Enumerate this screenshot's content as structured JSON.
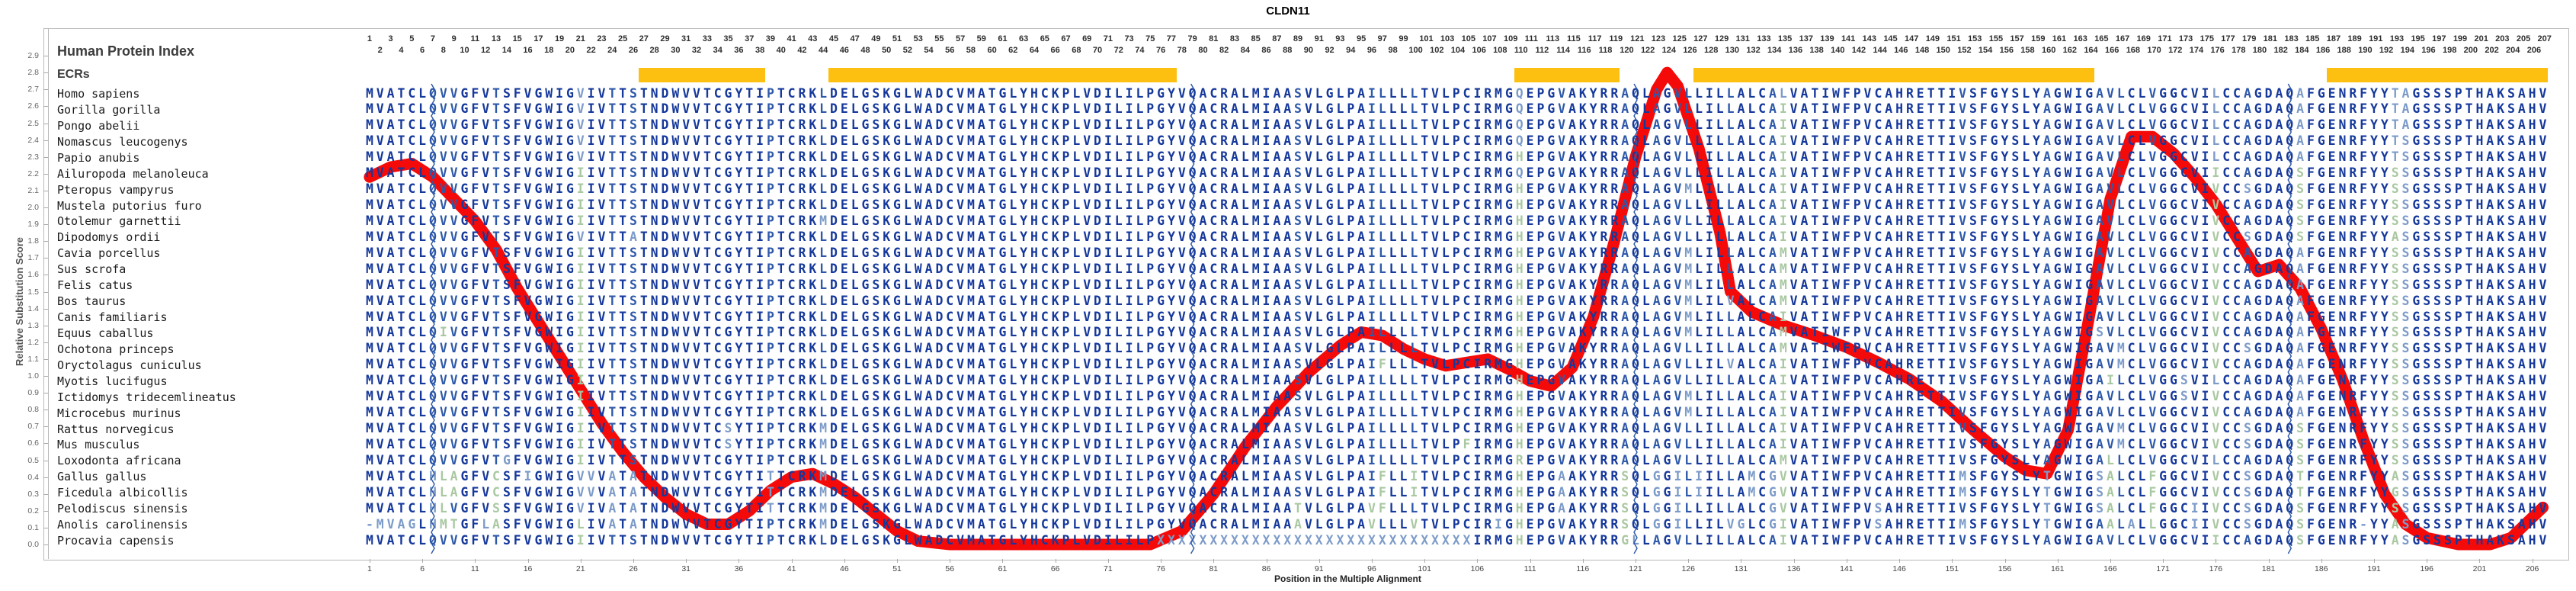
{
  "title": "CLDN11",
  "header": {
    "protein_index_label": "Human Protein Index",
    "ecrs_label": "ECRs"
  },
  "y_axis": {
    "label": "Relative Substitution Score",
    "min": 0.0,
    "max": 2.9,
    "step": 0.1
  },
  "x_axis": {
    "label": "Position in the Multiple Alignment",
    "tick_start": 1,
    "tick_step": 5,
    "tick_end": 206
  },
  "position_numbers": {
    "min": 1,
    "max": 207
  },
  "colors": {
    "ecr_band": "#FDC010",
    "curve": "#F50A0A",
    "seq_dark": "#15389B",
    "seq_mid": "#2E59AA",
    "seq_steel": "#7C9BC9",
    "seq_green": "#A9C8A2",
    "exon_line": "#2B57A7"
  },
  "ecr_regions": [
    {
      "start": 27,
      "end": 38
    },
    {
      "start": 45,
      "end": 77
    },
    {
      "start": 110,
      "end": 119
    },
    {
      "start": 127,
      "end": 164
    },
    {
      "start": 187,
      "end": 207
    }
  ],
  "exon_boundaries": [
    7,
    79,
    121,
    183
  ],
  "alignment": {
    "columns": 207,
    "species": [
      {
        "name": "Homo sapiens",
        "seq": "MVATCLQVVGFVTSFVGWIGVIVTTSTNDWVVTCGYTIPTCRKLDELGSKGLWADCVMATGLYHCKPLVDILILPGYVQACRALMIAASVLGLPAILLLLTVLPCIRMGQEPGVAKYRRAQLAGVLLILLALCALVATIWFPVCAHRETTIVSFGYSLYAGWIGAVLCLVGGCVILCCAGDAQAFGENRFYYTAGSSSPTHAKSAHV"
      },
      {
        "name": "Gorilla gorilla",
        "seq": "MVATCLQVVGFVTSFVGWIGVIVTTSTNDWVVTCGYTIPTCRKLDELGSKGLWADCVMATGLYHCKPLVDILILPGYVQACRALMIAASVLGLPAILLLLTVLPCIRMGQEPGVAKYRRAQLAGVLLILLALCAIVATIWFPVCAHRETTIVSFGYSLYAGWIGAVLCLVGGCVILCCAGDAQAFGENRFYYTAGSSSPTHAKSAHV"
      },
      {
        "name": "Pongo abelii",
        "seq": "MVATCLQVVGFVTSFVGWIGVIVTTSTNDWVVTCGYTIPTCRKLDELGSKGLWADCVMATGLYHCKPLVDILILPGYVQACRALMIAASVLGLPAILLLLTVLPCIRMGQEPGVAKYRRAQLAGVLLILLALCAIVATIWFPVCAHRETTIVSFGYSLYAGWIGAVLCLVGGCVILCCAGDAQAFGENRFYYTAGSSSPTHAKSAHV"
      },
      {
        "name": "Nomascus leucogenys",
        "seq": "MVATCLQVVGFVTSFVGWIGVIVTTSTNDWVVTCGYTIPTCRKLDELGSKGLWADCVMATGLYHCKPLVDILILPGYVQACRALMIAASVLGLPAILLLLTVLPCIRMGQEPGVAKYRRAQLAGVLLILLALCAIVATIWFPVCAHRETTIVSFGYSLYAGWIGAVLCLVGGCVILCCAGDAQAFGENRFYYTSGSSSPTHAKSAHV"
      },
      {
        "name": "Papio anubis",
        "seq": "MVATCLQVVGFVTSFVGWIGVIVTTSTNDWVVTCGYTIPTCRKLDELGSKGLWADCVMATGLYHCKPLVDILILPGYVQACRALMIAASVLGLPAILLLLTVLPCIRMGHEPGVAKYRRAQLAGVLLILLALCAIVATIWFPVCAHRETTIVSFGYSLYAGWIGAVLCLVGGCVILCCAGDAQAFGENRFYYTSGSSSPTHAKSAHV"
      },
      {
        "name": "Ailuropoda melanoleuca",
        "seq": "MVATCLQVVGFVTSFVGWIGIIVTTSTNDWVVTCGYTIPTCRKLDELGSKGLWADCVMATGLYHCKPLVDILILPGYVQACRALMIAASVLGLPAILLLLTVLPCIRMGQEPGVAKYRRAQLAGVLLILLALCAIVATIWFPVCAHRETTIVSFGYSLYAGWIGAVLCLVGGCVIICCAGDAQSFGENRFYYSSGSSSPTHAKSAHV"
      },
      {
        "name": "Pteropus vampyrus",
        "seq": "MVATCLQVVGFVTSFVGWIGIIVTTSTNDWVVTCGYTIPTCRKLDELGSKGLWADCVMATGLYHCKPLVDILILPGYVQACRALMIAASVLGLPAILLLLTVLPCIRMGHEPGVAKYRRAQLAGVMLILLALCAIVATIWFPVCAHRETTIVSFGYSLYAGWIGAVLCLVGGCVIVCCSGDAQSFGENRFYYSSGSSSPTHAKSAHV"
      },
      {
        "name": "Mustela putorius furo",
        "seq": "MVATCLQVVGFVTSFVGWIGIIVTTSTNDWVVTCGYTIPTCRKLDELGSKGLWADCVMATGLYHCKPLVDILILPGYVQACRALMIAASVLGLPAILLLLTVLPCIRMGHEPGVAKYRRAQLAGVLLILLALCAIVATIWFPVCAHRETTIVSFGYSLYAGWIGAVLCLVGGCVIVCCAGDAQSFGENRFYYSSGSSSPTHAKSAHV"
      },
      {
        "name": "Otolemur garnettii",
        "seq": "MVATCLQVVGFVTSFVGWIGIIVTTSTNDWVVTCGYTIPTCRKMDELGSKGLWADCVMATGLYHCKPLVDILILPGYVQACRALMIAASVLGLPAILLLLTVLPCIRMGHEPGVAKYRRAQLAGVLLILLALCAIVATIWFPVCAHRETTIVSFGYSLYAGWIGAVLCLVGGCVIVCCAGDAQSFGENRFYYSSGSSSPTHAKSAHV"
      },
      {
        "name": "Dipodomys ordii",
        "seq": "MVATCLQVVGFVTSFVGWIGVIVTTATNDWVVTCGYTIPTCRKLDELGSKGLWADCVMATGLYHCKPLVDILILPGYVQACRALMIAASVLGLPAILLLLTVLPCIRMGHEPGVAKYRRAQLAGVLLILLALCAIVATIWFPVCAHRETTIVSFGYSLYAGWIGAVLCLVGGCVIVCCSGDAQSFGENRFYYASGSSSPTHAKSAHV"
      },
      {
        "name": "Cavia porcellus",
        "seq": "MVATCLQVVGFVTSFVGWIGIIVTTSTNDWVVTCGYTIPTCRKLDELGSKGLWADCVMATGLYHCKPLVDILILPGYVQACRALMIAASVLGLPAILLLLTVLPCIRMGHEPGVAKYRRAQLAGVMLILLALCAMVATIWFPVCAHRETTIVSFGYSLYAGWIGAVLCLVGGCVIVCCAGDAQAFGENRFYYSSGSSSPTHAKSAHV"
      },
      {
        "name": "Sus scrofa",
        "seq": "MVATCLQVVGFVTSFVGWIGIIVTTSTNDWVVTCGYTIPTCRKLDELGSKGLWADCVMATGLYHCKPLVDILILPGYVQACRALMIAASVLGLPAILLLLTVLPCIRMGHEPGVAKYRRAQLAGVMLILLALCAMVATIWFPVCAHRETTIVSFGYSLYAGWIGAVLCLVGGCVIVCCAGDAQAFGENRFYYSSGSSSPTHAKSAHV"
      },
      {
        "name": "Felis catus",
        "seq": "MVATCLQVVGFVTSFVGWIGIIVTTSTNDWVVTCGYTIPTCRKLDELGSKGLWADCVMATGLYHCKPLVDILILPGYVQACRALMIAASVLGLPAILLLLTVLPCIRMGHEPGVAKYRRAQLAGVMLILLALCAMVATIWFPVCAHRETTIVSFGYSLYAGWIGAVLCLVGGCVIVCCAGDAQAFGENRFYYSSGSSSPTHAKSAHV"
      },
      {
        "name": "Bos taurus",
        "seq": "MVATCLQVVGFVTSFVGWIGIIVTTSTNDWVVTCGYTIPTCRKLDELGSKGLWADCVMATGLYHCKPLVDILILPGYVQACRALMIAASVLGLPAILLLLTVLPCIRMGHEPGVAKYRRAQLAGVMLILVALCAMVATIWFPVCAHRETTIVSFGYSLYAGWIGAVLCLVGGCVIVCCAGDAQAFGENRFYYSSGSSSPTHAKSAHV"
      },
      {
        "name": "Canis familiaris",
        "seq": "MVATCLQVVGFVTSFVGWIGIIVTTSTNDWVVTCGYTIPTCRKLDELGSKGLWADCVMATGLYHCKPLVDILILPGYVQACRALMIAASVLGLPAILLLLTVLPCIRMGHEPGVAKYRRAQLAGVMLILLALCAIVATIWFPVCAHRETTIVSFGYSLYAGWIGAVLCLVGGCVIVCCAGDAQAFGENRFYYSSGSSSPTHAKSAHV"
      },
      {
        "name": "Equus caballus",
        "seq": "MVATCLQIVGFVTSFVGWIGIIVTTSTNDWVVTCGYTIPTCRKLDELGSKGLWADCVMATGLYHCKPLVDILILPGYVQACRALMIAASVLGLPAILLLLTVLPCIRMGHEPGVAKYRRAQLAGVMLILLALCAMVATIWFPVCAHRETTIVSFGYSLYAGWIGSVLCLVGGCVIVCCAGDAQAFGENRFYYSSGSSSPTHAKSAHV"
      },
      {
        "name": "Ochotona princeps",
        "seq": "MVATCLQVVGFVTSFVGWIGIIVTTSTNDWVVTCGYTIPTCRKLDELGSKGLWADCVMATGLYHCKPLVDILILPGYVQACRALMIAASVLGLPAILLLLTVLPCIRMGHEPGVAKYRRAQLAGVLLILLALCAMVATIWFPVCAHRETTIVSFGYSLYAGWIGAVMCLVGGCVIVCCSGDAQAFGENRFYYSSGSSSPTHAKSAHV"
      },
      {
        "name": "Oryctolagus cuniculus",
        "seq": "MVATCLQVVGFVTSFVGWIGIIVTTSTNDWVVTCGYTIPTCRKLDELGSKGLWADCVMATGLYHCKPLVDILILPGYVQACRALMIAASVLGLPAIFLLLTVLPCIRMGHEPGVAKYRRAQLAGVLLILVALCAIVATIWFPVCAHRETTIVSFGYSLYAGWIGAVMCLVGGCVIVCCAGDAQAFGENRFYYSSGSSSPTHAKSAHV"
      },
      {
        "name": "Myotis lucifugus",
        "seq": "MVATCLQVVGFVTSFVGWIGIIVTTSTNDWVVTCGYTIPTCRKLDELGSKGLWADCVMATGLYHCKPLVDILILPGYVQACRALMIAASVLGLPAILLLLTVLPCIRMGHEPGVAKYRRAQLAGVLLILLALCAIVATIWFPVCAHRETTIVSFGYSLYAGWIGAILCLVGGSVILCCAGDAQAFGENRFYYSSGSSSPTHAKSAHV"
      },
      {
        "name": "Ictidomys tridecemlineatus",
        "seq": "MVATCLQVVGFVTSFVGWIGIIVTTSTNDWVVTCGYTIPTCRKLDELGSKGLWADCVMATGLYHCKPLVDILILPGYVQACRALMIAASVLGLPAILLLLTVLPCIRMGHEPGVAKYRRAQLAGVMLILLALCAIVATIWFPVCAHRETTIVSFGYSLYAGWIGAVLCLVGGSVIVCCAGDAQAFGENRFYYSSGSSSPTHAKSAHV"
      },
      {
        "name": "Microcebus murinus",
        "seq": "MVATCLQVVGFVTSFVGWIGIIVTTSTNDWVVTCGYTIPTCRKLDELGSKGLWADCVMATGLYHCKPLVDILILPGYVQACRALMIAASVLGLPAILLLLTVLPCIRMGHEPGVAKYRRAQLAGVMLILLALCAIVATIWFPVCAHRETTIVSFGYSLYAGWIGAVLCLVGGCVIVCCAGDAQAFGENRFYYSSGSSSPTHAKSAHV"
      },
      {
        "name": "Rattus norvegicus",
        "seq": "MVATCLQVVGFVTSFVGWIGIIVTTSTNDWVVTCSYTIPTCRKMDELGSKGLWADCVMATGLYHCKPLVDILILPGYVQACRALMIAASVLGLPAILLLLTVLPCIRMGHEPGVAKYRRAQLAGVLLILLALCAIVATIWFPVCAHRETTIVSFGYSLYAGWIGAVMCLVGGCVIVCCSGDAQSFGENRFYYSSGSSSPTHAKSAHV"
      },
      {
        "name": "Mus musculus",
        "seq": "MVATCLQVVGFVTSFVGWIGIIVTTSTNDWVVTCSYTIPTCRKMDELGSKGLWADCVMATGLYHCKPLVDILILPGYVQACRALMIAASVLGLPAILLLLTVLPFIRMGHEPGVAKYRRAQLAGVLLILLALCAIVATIWFPVCAHRETTIVSFGYSLYAGWIGAVMCLVGGCVIVCCSGDAQSFGENRFYYSSGSSSPTHAKSAHV"
      },
      {
        "name": "Loxodonta africana",
        "seq": "MVATCLQVVGFVTGFVGWIGIIVTTSTNDWVVTCGYTIPTCRKLDELGSKGLWADCVMATGLYHCKPLVDILILPGYVQACRALMIAASVLGLPAILLLLTVLPCIRMGREPGVAKYRRAQLAGVLLILLALCAMVATIWFPVCAHRETTIVSFGYSLYAGWIGALLCLVGGCVILCCAGDAQSFGENRFYYSSGSSSPTHAKSAHV"
      },
      {
        "name": "Gallus gallus",
        "seq": "MVATCLHLAGFVCSFIGWIGVVVATATNDWVVTCGYTITTCRKMDELGSKGLWADCVMATGLYHCKPLVDILILPGYVQACRALMIAASVLGLPAIFLLITVLPCIRMGHEPGAAKYRRSQLGGILIILLAMCGVVATIWFPVCAHRETTIMSFGYSLYTGWIGSALCLFGGCVIVCCSGDAQTFGENRFYYASGSSSPTHAKSAHV"
      },
      {
        "name": "Ficedula albicollis",
        "seq": "MVATCLHLAGFVCSFVGWIGVVVATATNDWVVTCGYTITTCRKMDELGSKGLWADCVMATGLYHCKPLVDILILPGYVQACRALMIAASVLGLPAIFLLITVLPCIRMGHEPGAAKYRRSQLGGILIILLAMCGVVATIWFPVCAHRETTIMSFGYSLYTGWIGSALCLFGGCVIVCCSGDAQTFGENRFYYGSGSSSPTHAKSAHV"
      },
      {
        "name": "Pelodiscus sinensis",
        "seq": "MVATCLHLVGFVSSFVGWIGVIVATATNDWVVTCGYTITTCRKMDELGSKGLWADCVMATGLYHCKPLVDILILPGYVQACRALMIAATVLGLPAVFLLLTVLPCIRMGHEPGAAKYRRSQLGGILLILLALCGVVATIWFPVSAHRETTIVSFGYSLYTGWIGSALCLFGGCIIVCCSGDAQSFGENRFYYSSGSSSPTHAKSAHV"
      },
      {
        "name": "Anolis carolinensis",
        "seq": "-MVAGLHMTGFLASFVGWIGLIVATATNDWVVTCGYTIPTCRKMDELGSKGLWADCVMATGLYHCKPLVDILILPGYVQACRALMIAAAVLGLPAVLLLVTVLPCIRIGHEPGVAKYRRSQLGGILLILVGLCGIVATIWFPVSAHRETTIMSFGYSLYTGWIGAALALLGGCIIVCCSGDAQSFGENR-YYASGSSSPTHAKSAHV"
      },
      {
        "name": "Procavia capensis",
        "seq": "MVATCLQVVGFVTSFVGWIGIIVTTSTNDWVVTCGYTIPTCRKLDELGSKGLWADCVMATGLYHCKPLVDILILPXXXXXXXXXXXXXXXXXXXXXXXXXXXXXXIRMGHEPGVAKYRRGLLAGVLLILLALCAIVATIWFPVCAHRETTIVSFGYSLYAGWIGAVLCLVGGCVIICCAGDAQSFGENRFYYASGSSSPTHAKSAHV"
      }
    ]
  },
  "chart_data": {
    "type": "line",
    "title": "CLDN11",
    "xlabel": "Position in the Multiple Alignment",
    "ylabel": "Relative Substitution Score",
    "xlim": [
      1,
      207
    ],
    "ylim": [
      0,
      2.9
    ],
    "series_name": "relative substitution score",
    "points": [
      [
        1,
        2.18
      ],
      [
        3,
        2.24
      ],
      [
        5,
        2.26
      ],
      [
        7,
        2.18
      ],
      [
        9,
        2.05
      ],
      [
        11,
        1.92
      ],
      [
        13,
        1.75
      ],
      [
        15,
        1.52
      ],
      [
        17,
        1.32
      ],
      [
        19,
        1.12
      ],
      [
        21,
        0.92
      ],
      [
        23,
        0.72
      ],
      [
        25,
        0.55
      ],
      [
        27,
        0.4
      ],
      [
        29,
        0.28
      ],
      [
        31,
        0.18
      ],
      [
        33,
        0.12
      ],
      [
        35,
        0.12
      ],
      [
        37,
        0.2
      ],
      [
        39,
        0.32
      ],
      [
        41,
        0.4
      ],
      [
        43,
        0.42
      ],
      [
        45,
        0.36
      ],
      [
        47,
        0.28
      ],
      [
        49,
        0.18
      ],
      [
        51,
        0.08
      ],
      [
        53,
        0.02
      ],
      [
        56,
        0.0
      ],
      [
        60,
        0.0
      ],
      [
        64,
        0.0
      ],
      [
        68,
        0.0
      ],
      [
        72,
        0.0
      ],
      [
        75,
        0.0
      ],
      [
        78,
        0.08
      ],
      [
        81,
        0.3
      ],
      [
        84,
        0.58
      ],
      [
        87,
        0.82
      ],
      [
        90,
        1.02
      ],
      [
        93,
        1.18
      ],
      [
        95,
        1.26
      ],
      [
        97,
        1.24
      ],
      [
        99,
        1.16
      ],
      [
        101,
        1.1
      ],
      [
        103,
        1.06
      ],
      [
        105,
        1.08
      ],
      [
        107,
        1.1
      ],
      [
        109,
        1.04
      ],
      [
        111,
        0.97
      ],
      [
        113,
        0.94
      ],
      [
        115,
        1.05
      ],
      [
        117,
        1.35
      ],
      [
        119,
        1.8
      ],
      [
        121,
        2.3
      ],
      [
        123,
        2.7
      ],
      [
        124,
        2.8
      ],
      [
        125,
        2.72
      ],
      [
        127,
        2.35
      ],
      [
        129,
        1.85
      ],
      [
        130,
        1.5
      ],
      [
        132,
        1.38
      ],
      [
        135,
        1.3
      ],
      [
        138,
        1.24
      ],
      [
        141,
        1.17
      ],
      [
        144,
        1.08
      ],
      [
        147,
        0.98
      ],
      [
        150,
        0.85
      ],
      [
        153,
        0.68
      ],
      [
        156,
        0.52
      ],
      [
        158,
        0.44
      ],
      [
        160,
        0.42
      ],
      [
        162,
        0.68
      ],
      [
        164,
        1.35
      ],
      [
        166,
        2.05
      ],
      [
        168,
        2.42
      ],
      [
        170,
        2.42
      ],
      [
        172,
        2.32
      ],
      [
        174,
        2.18
      ],
      [
        176,
        2.02
      ],
      [
        178,
        1.82
      ],
      [
        180,
        1.62
      ],
      [
        182,
        1.66
      ],
      [
        184,
        1.52
      ],
      [
        186,
        1.28
      ],
      [
        188,
        0.98
      ],
      [
        190,
        0.62
      ],
      [
        192,
        0.3
      ],
      [
        194,
        0.12
      ],
      [
        196,
        0.04
      ],
      [
        199,
        0.0
      ],
      [
        202,
        0.0
      ],
      [
        204,
        0.04
      ],
      [
        206,
        0.16
      ],
      [
        207,
        0.22
      ]
    ]
  }
}
